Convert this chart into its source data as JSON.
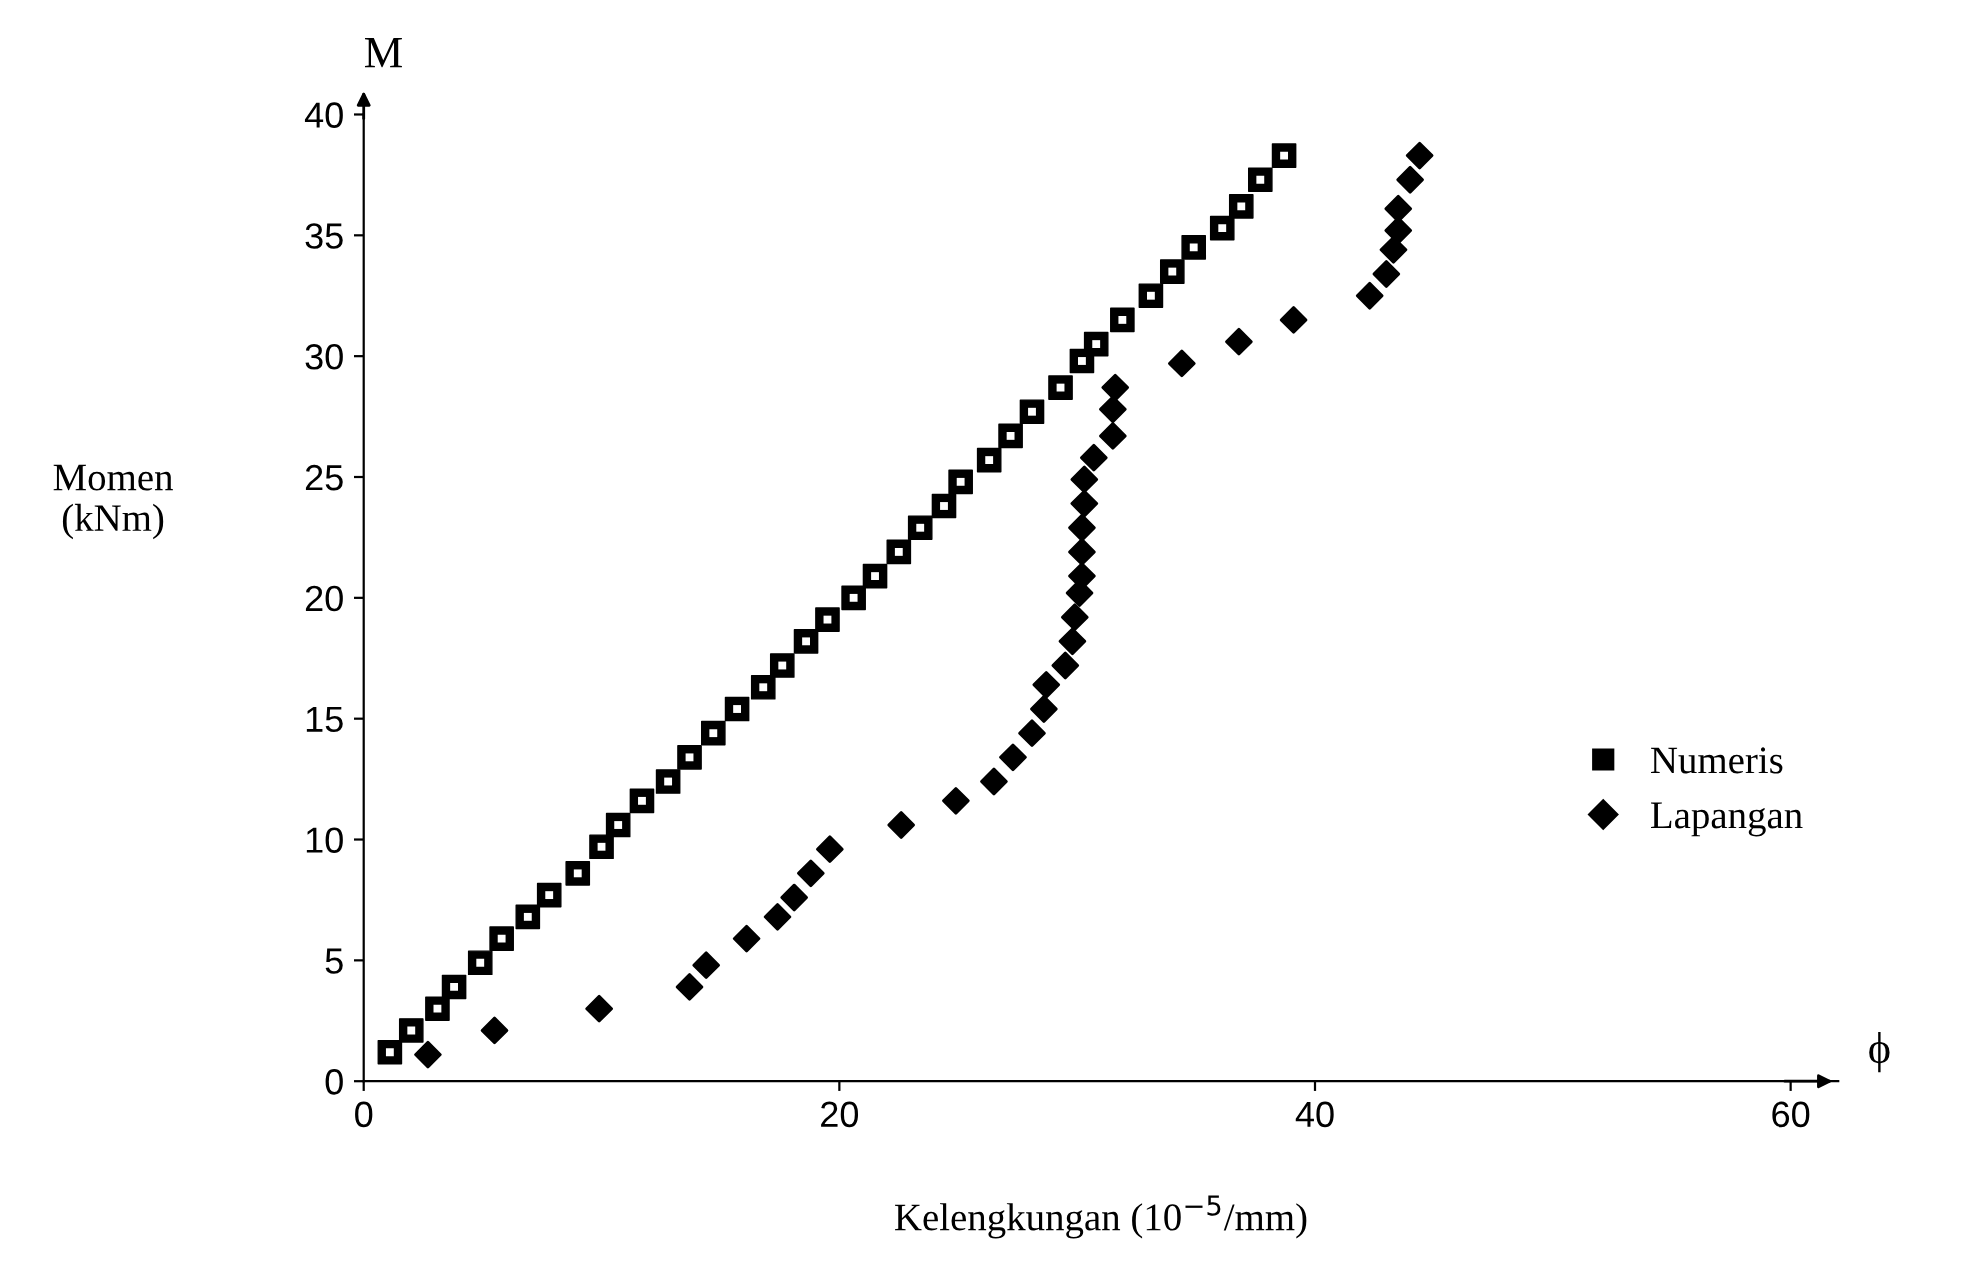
{
  "chart_data": {
    "type": "scatter",
    "xlabel": "Kelengkungan (10$^{−5}$/mm)",
    "ylabel": "Momen\n(kNm)",
    "annotations": [
      "M",
      "ϕ"
    ],
    "xlim": [
      0,
      62
    ],
    "xticks": [
      0,
      20,
      40,
      60
    ],
    "ylim": [
      0,
      40
    ],
    "yticks": [
      0,
      5,
      10,
      15,
      20,
      25,
      30,
      35,
      40
    ],
    "grid": false,
    "legend": "right",
    "series": [
      {
        "name": "Numeris",
        "color": "#000000",
        "marker": "square",
        "x": [
          1.1,
          2.0,
          3.1,
          3.8,
          4.9,
          5.8,
          6.9,
          7.8,
          9.0,
          10.0,
          10.7,
          11.7,
          12.8,
          13.7,
          14.7,
          15.7,
          16.8,
          17.6,
          18.6,
          19.5,
          20.6,
          21.5,
          22.5,
          23.4,
          24.4,
          25.1,
          26.3,
          27.2,
          28.1,
          29.3,
          30.2,
          30.8,
          31.9,
          33.1,
          34.0,
          34.9,
          36.1,
          36.9,
          37.7,
          38.7
        ],
        "values": [
          1.2,
          2.1,
          3.0,
          3.9,
          4.9,
          5.9,
          6.8,
          7.7,
          8.6,
          9.7,
          10.6,
          11.6,
          12.4,
          13.4,
          14.4,
          15.4,
          16.3,
          17.2,
          18.2,
          19.1,
          20.0,
          20.9,
          21.9,
          22.9,
          23.8,
          24.8,
          25.7,
          26.7,
          27.7,
          28.7,
          29.8,
          30.5,
          31.5,
          32.5,
          33.5,
          34.5,
          35.3,
          36.2,
          37.3,
          38.3
        ]
      },
      {
        "name": "Lapangan",
        "color": "#000000",
        "marker": "diamond",
        "x": [
          2.7,
          5.5,
          9.9,
          13.7,
          14.4,
          16.1,
          17.4,
          18.1,
          18.8,
          19.6,
          22.6,
          24.9,
          26.5,
          27.3,
          28.1,
          28.6,
          28.7,
          29.5,
          29.8,
          29.9,
          30.1,
          30.2,
          30.2,
          30.2,
          30.3,
          30.3,
          30.7,
          31.5,
          31.5,
          31.6,
          34.4,
          36.8,
          39.1,
          42.3,
          43.0,
          43.3,
          43.5,
          43.5,
          44.0,
          44.4
        ],
        "values": [
          1.1,
          2.1,
          3.0,
          3.9,
          4.8,
          5.9,
          6.8,
          7.6,
          8.6,
          9.6,
          10.6,
          11.6,
          12.4,
          13.4,
          14.4,
          15.4,
          16.4,
          17.2,
          18.2,
          19.2,
          20.2,
          20.9,
          21.9,
          22.9,
          23.9,
          24.9,
          25.8,
          26.7,
          27.8,
          28.7,
          29.7,
          30.6,
          31.5,
          32.5,
          33.4,
          34.4,
          35.2,
          36.1,
          37.3,
          38.3
        ]
      }
    ]
  }
}
